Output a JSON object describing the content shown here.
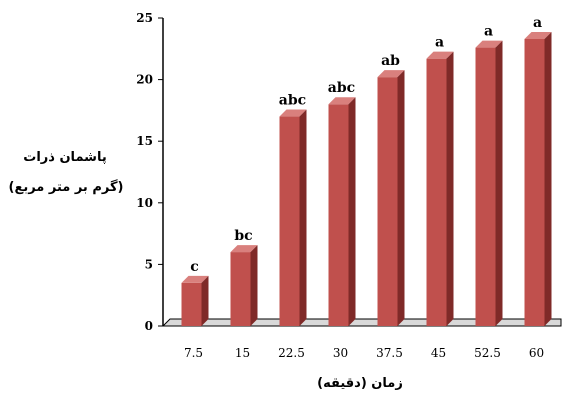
{
  "chart_data": {
    "type": "bar",
    "categories": [
      "7.5",
      "15",
      "22.5",
      "30",
      "37.5",
      "45",
      "52.5",
      "60"
    ],
    "values": [
      3.5,
      6.0,
      17.0,
      18.0,
      20.2,
      21.7,
      22.6,
      23.3
    ],
    "data_labels": [
      "c",
      "bc",
      "abc",
      "abc",
      "ab",
      "a",
      "a",
      "a"
    ],
    "ylim": [
      0,
      25
    ],
    "yticks": [
      0,
      5,
      10,
      15,
      20,
      25
    ],
    "ylabel_line1": "پاشمان ذرات",
    "ylabel_line2": "(گرم بر متر مربع)",
    "xlabel": "زمان (دقیقه)",
    "grid": false,
    "bar_color": "#c0504d"
  }
}
